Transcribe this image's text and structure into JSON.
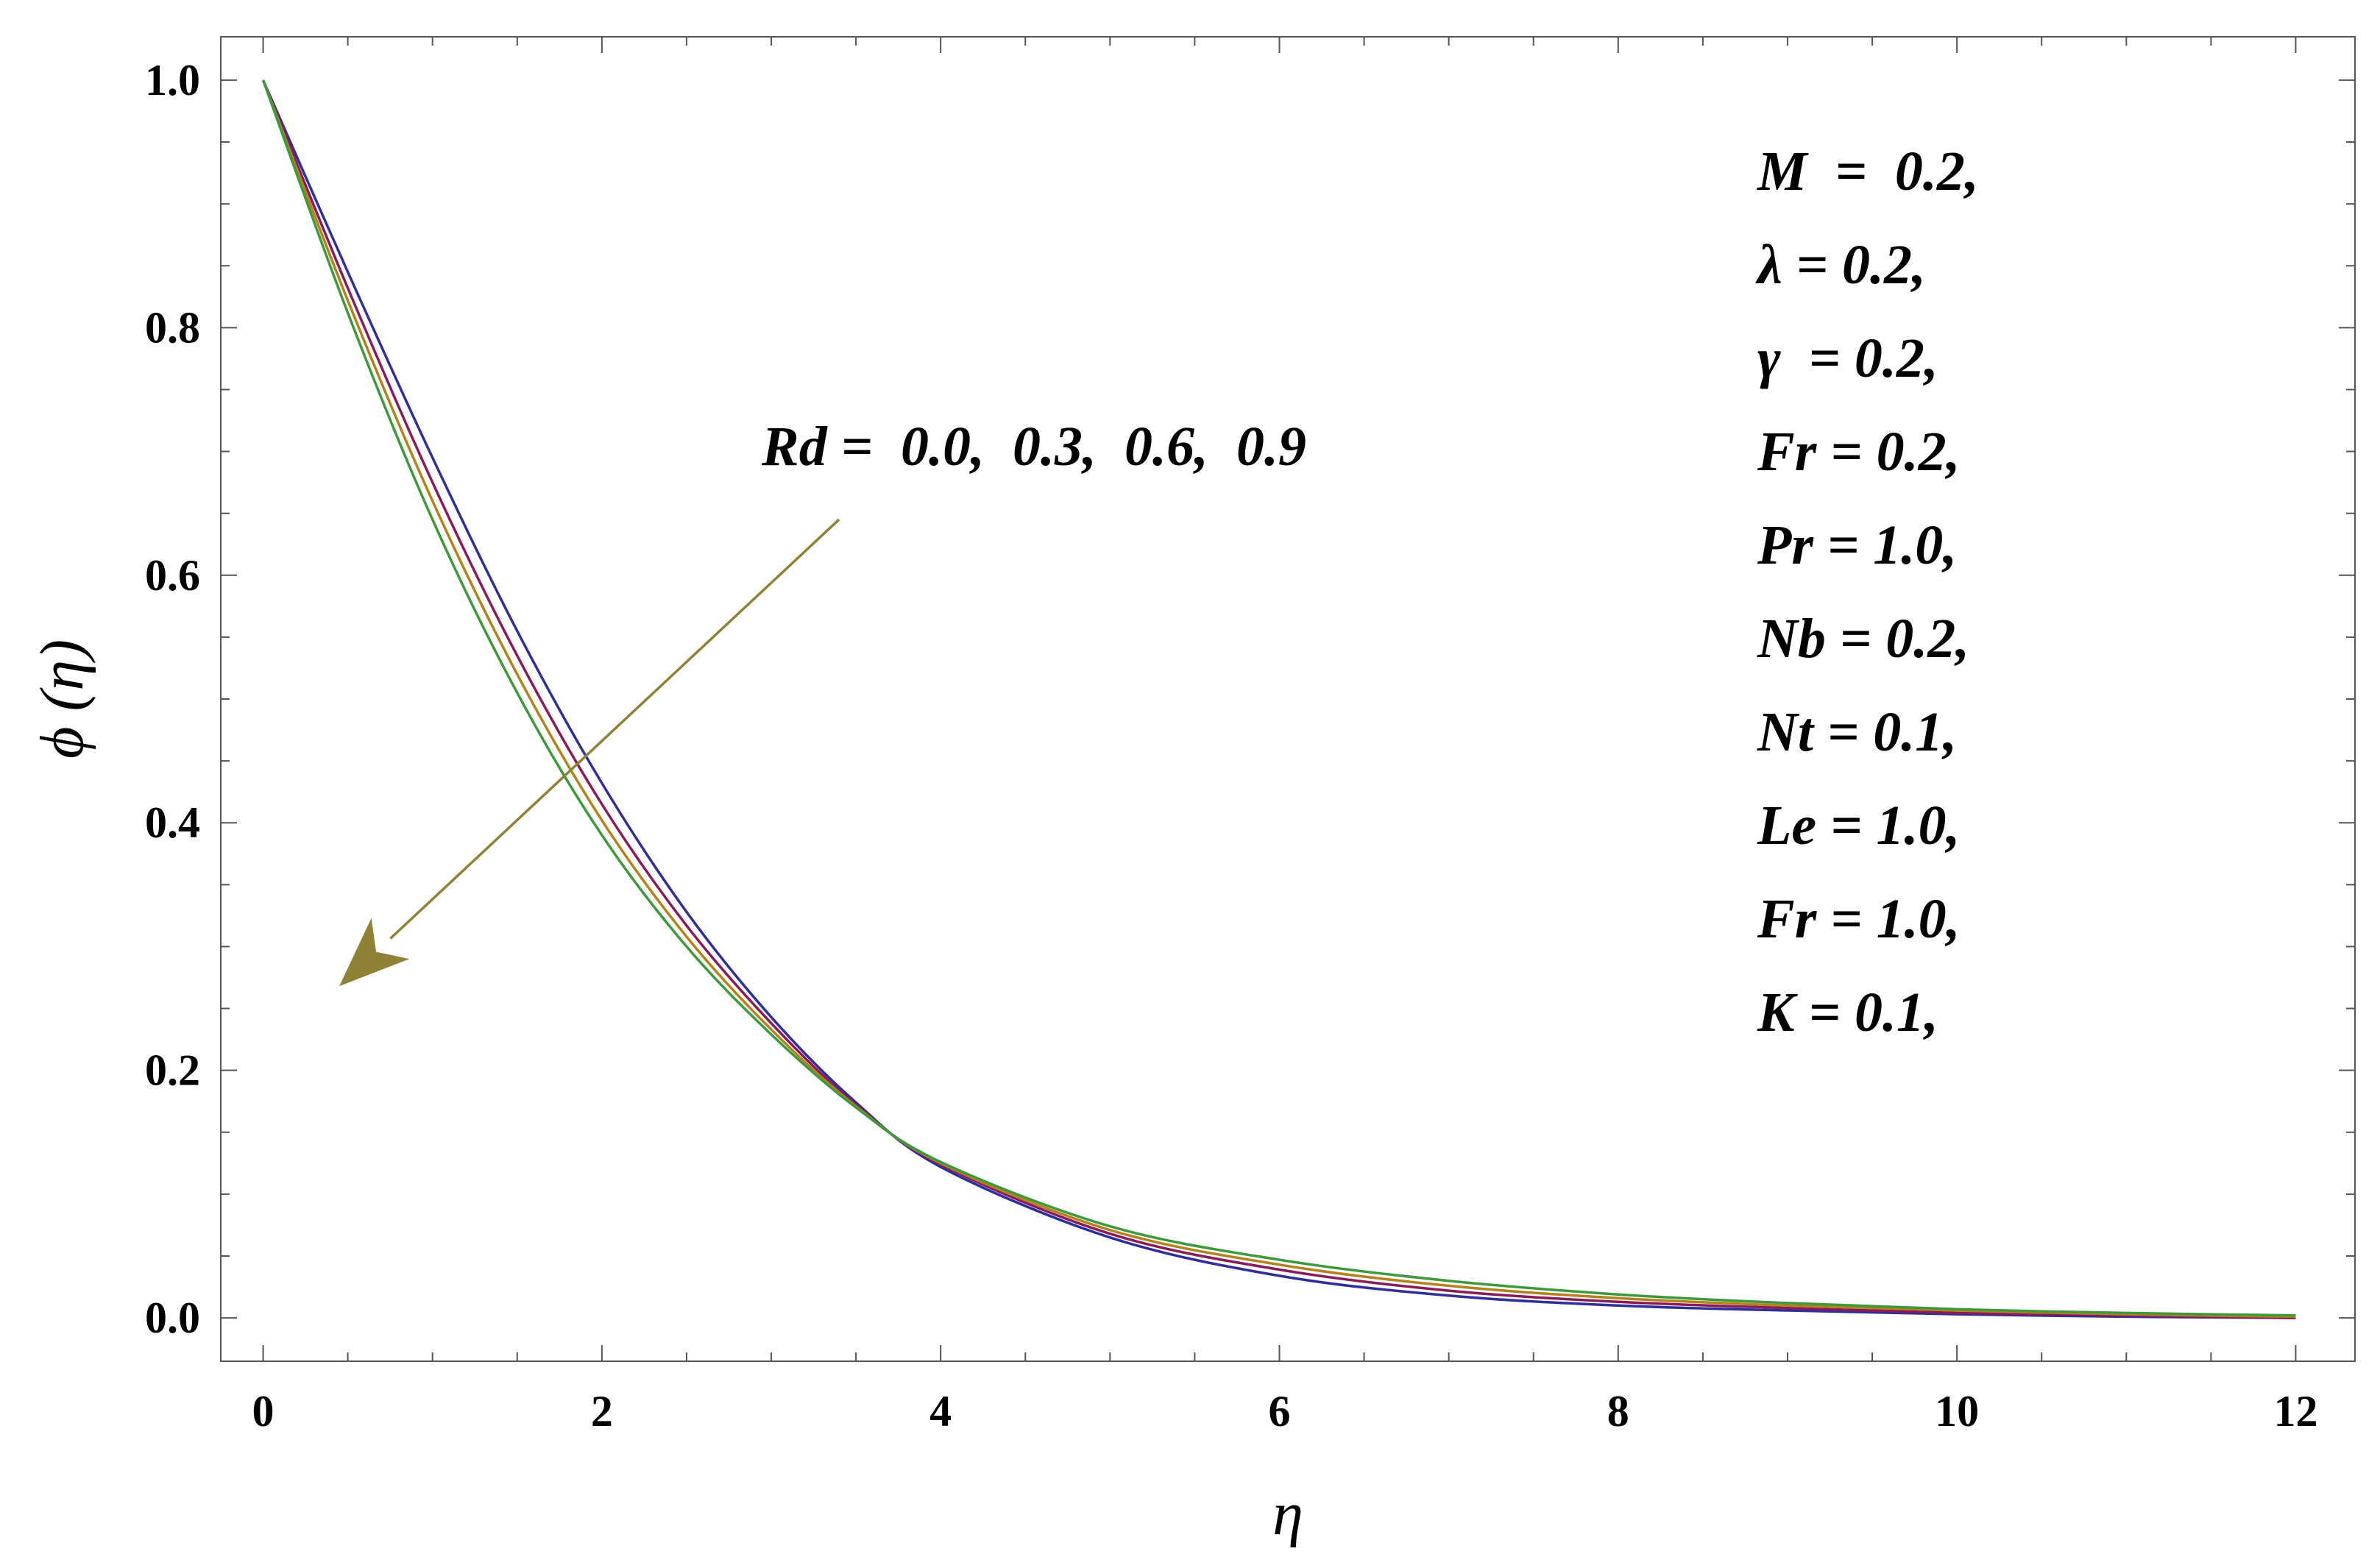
{
  "chart_data": {
    "type": "line",
    "title": "",
    "xlabel": "η",
    "ylabel": "ϕ (η)",
    "xlim": [
      -0.25,
      12.35
    ],
    "ylim": [
      -0.035,
      1.035
    ],
    "x_ticks": [
      0,
      2,
      4,
      6,
      8,
      10,
      12
    ],
    "x_tick_labels": [
      "0",
      "2",
      "4",
      "6",
      "8",
      "10",
      "12"
    ],
    "y_ticks": [
      0.0,
      0.2,
      0.4,
      0.6,
      0.8,
      1.0
    ],
    "y_tick_labels": [
      "0.0",
      "0.2",
      "0.4",
      "0.6",
      "0.8",
      "1.0"
    ],
    "grid": false,
    "series": [
      {
        "color": "#2e2e9c",
        "x": [
          0,
          0.5,
          1,
          1.5,
          2,
          2.5,
          3,
          3.5,
          4,
          5,
          6,
          7,
          8,
          9,
          10,
          11,
          12
        ],
        "y": [
          1.0,
          0.845,
          0.695,
          0.555,
          0.432,
          0.328,
          0.243,
          0.174,
          0.122,
          0.065,
          0.034,
          0.018,
          0.01,
          0.006,
          0.003,
          0.001,
          0.0
        ]
      },
      {
        "color": "#8b1a5a",
        "x": [
          0,
          0.5,
          1,
          1.5,
          2,
          2.5,
          3,
          3.5,
          4,
          5,
          6,
          7,
          8,
          9,
          10,
          11,
          12
        ],
        "y": [
          1.0,
          0.832,
          0.675,
          0.535,
          0.415,
          0.317,
          0.238,
          0.172,
          0.124,
          0.068,
          0.039,
          0.022,
          0.013,
          0.008,
          0.004,
          0.002,
          0.0
        ]
      },
      {
        "color": "#b5821a",
        "x": [
          0,
          0.5,
          1,
          1.5,
          2,
          2.5,
          3,
          3.5,
          4,
          5,
          6,
          7,
          8,
          9,
          10,
          11,
          12
        ],
        "y": [
          1.0,
          0.822,
          0.66,
          0.52,
          0.402,
          0.308,
          0.233,
          0.171,
          0.125,
          0.071,
          0.043,
          0.026,
          0.016,
          0.01,
          0.006,
          0.003,
          0.001
        ]
      },
      {
        "color": "#3c9a3c",
        "x": [
          0,
          0.5,
          1,
          1.5,
          2,
          2.5,
          3,
          3.5,
          4,
          5,
          6,
          7,
          8,
          9,
          10,
          11,
          12
        ],
        "y": [
          1.0,
          0.812,
          0.645,
          0.505,
          0.39,
          0.3,
          0.229,
          0.17,
          0.126,
          0.074,
          0.047,
          0.03,
          0.019,
          0.012,
          0.007,
          0.004,
          0.002
        ]
      }
    ],
    "annotation": {
      "text": "Rd =  0.0,  0.3,  0.6,  0.9",
      "arrow_color": "#8f8236",
      "arrow_from": [
        3.4,
        0.645
      ],
      "arrow_to": [
        0.45,
        0.268
      ]
    },
    "parameters": [
      "M  =  0.2,",
      "λ = 0.2,",
      "γ  = 0.2,",
      "Fr = 0.2,",
      "Pr = 1.0,",
      "Nb = 0.2,",
      "Nt = 0.1,",
      "Le = 1.0,",
      "Fr = 1.0,",
      "K = 0.1,"
    ]
  }
}
